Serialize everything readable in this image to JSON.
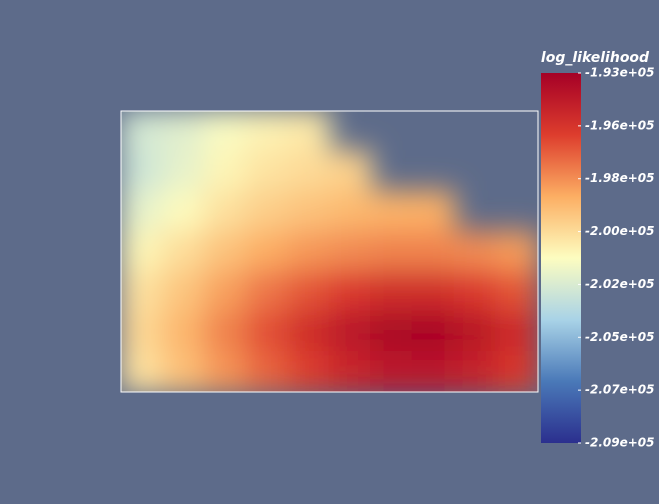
{
  "chart_data": {
    "type": "heatmap",
    "colorbar_title": "log_likelihood",
    "z": [
      [
        -202600,
        -202200,
        -201400,
        -200900,
        -200600,
        null,
        null,
        null,
        null,
        null
      ],
      [
        -202800,
        -202000,
        -201000,
        -200400,
        -200100,
        -199800,
        null,
        null,
        null,
        null
      ],
      [
        -202000,
        -201200,
        -200300,
        -199700,
        -199300,
        -199000,
        -198800,
        -198700,
        null,
        null
      ],
      [
        -201000,
        -200200,
        -199300,
        -198600,
        -198100,
        -197800,
        -197600,
        -197600,
        -197800,
        -198200
      ],
      [
        -200300,
        -199400,
        -198300,
        -197300,
        -196500,
        -195800,
        -195300,
        -195300,
        -195800,
        -196500
      ],
      [
        -200000,
        -198900,
        -197600,
        -196400,
        -195300,
        -194300,
        -193600,
        -193500,
        -194200,
        -195200
      ],
      [
        -200300,
        -199200,
        -198000,
        -196900,
        -195900,
        -195000,
        -194400,
        -194300,
        -194800,
        -195700
      ]
    ],
    "colormap": [
      "#2b2f8e",
      "#4a79b8",
      "#a9d3e7",
      "#fdfdc0",
      "#fcae63",
      "#dd3d2d",
      "#a50026"
    ],
    "zlim": [
      -209260,
      -193300
    ],
    "zticks": [
      {
        "value": -193300,
        "label": "-1.93e+05"
      },
      {
        "value": -195580,
        "label": "-1.96e+05"
      },
      {
        "value": -197860,
        "label": "-1.98e+05"
      },
      {
        "value": -200140,
        "label": "-2.00e+05"
      },
      {
        "value": -202420,
        "label": "-2.02e+05"
      },
      {
        "value": -204700,
        "label": "-2.05e+05"
      },
      {
        "value": -206980,
        "label": "-2.07e+05"
      },
      {
        "value": -209260,
        "label": "-2.09e+05"
      }
    ]
  }
}
